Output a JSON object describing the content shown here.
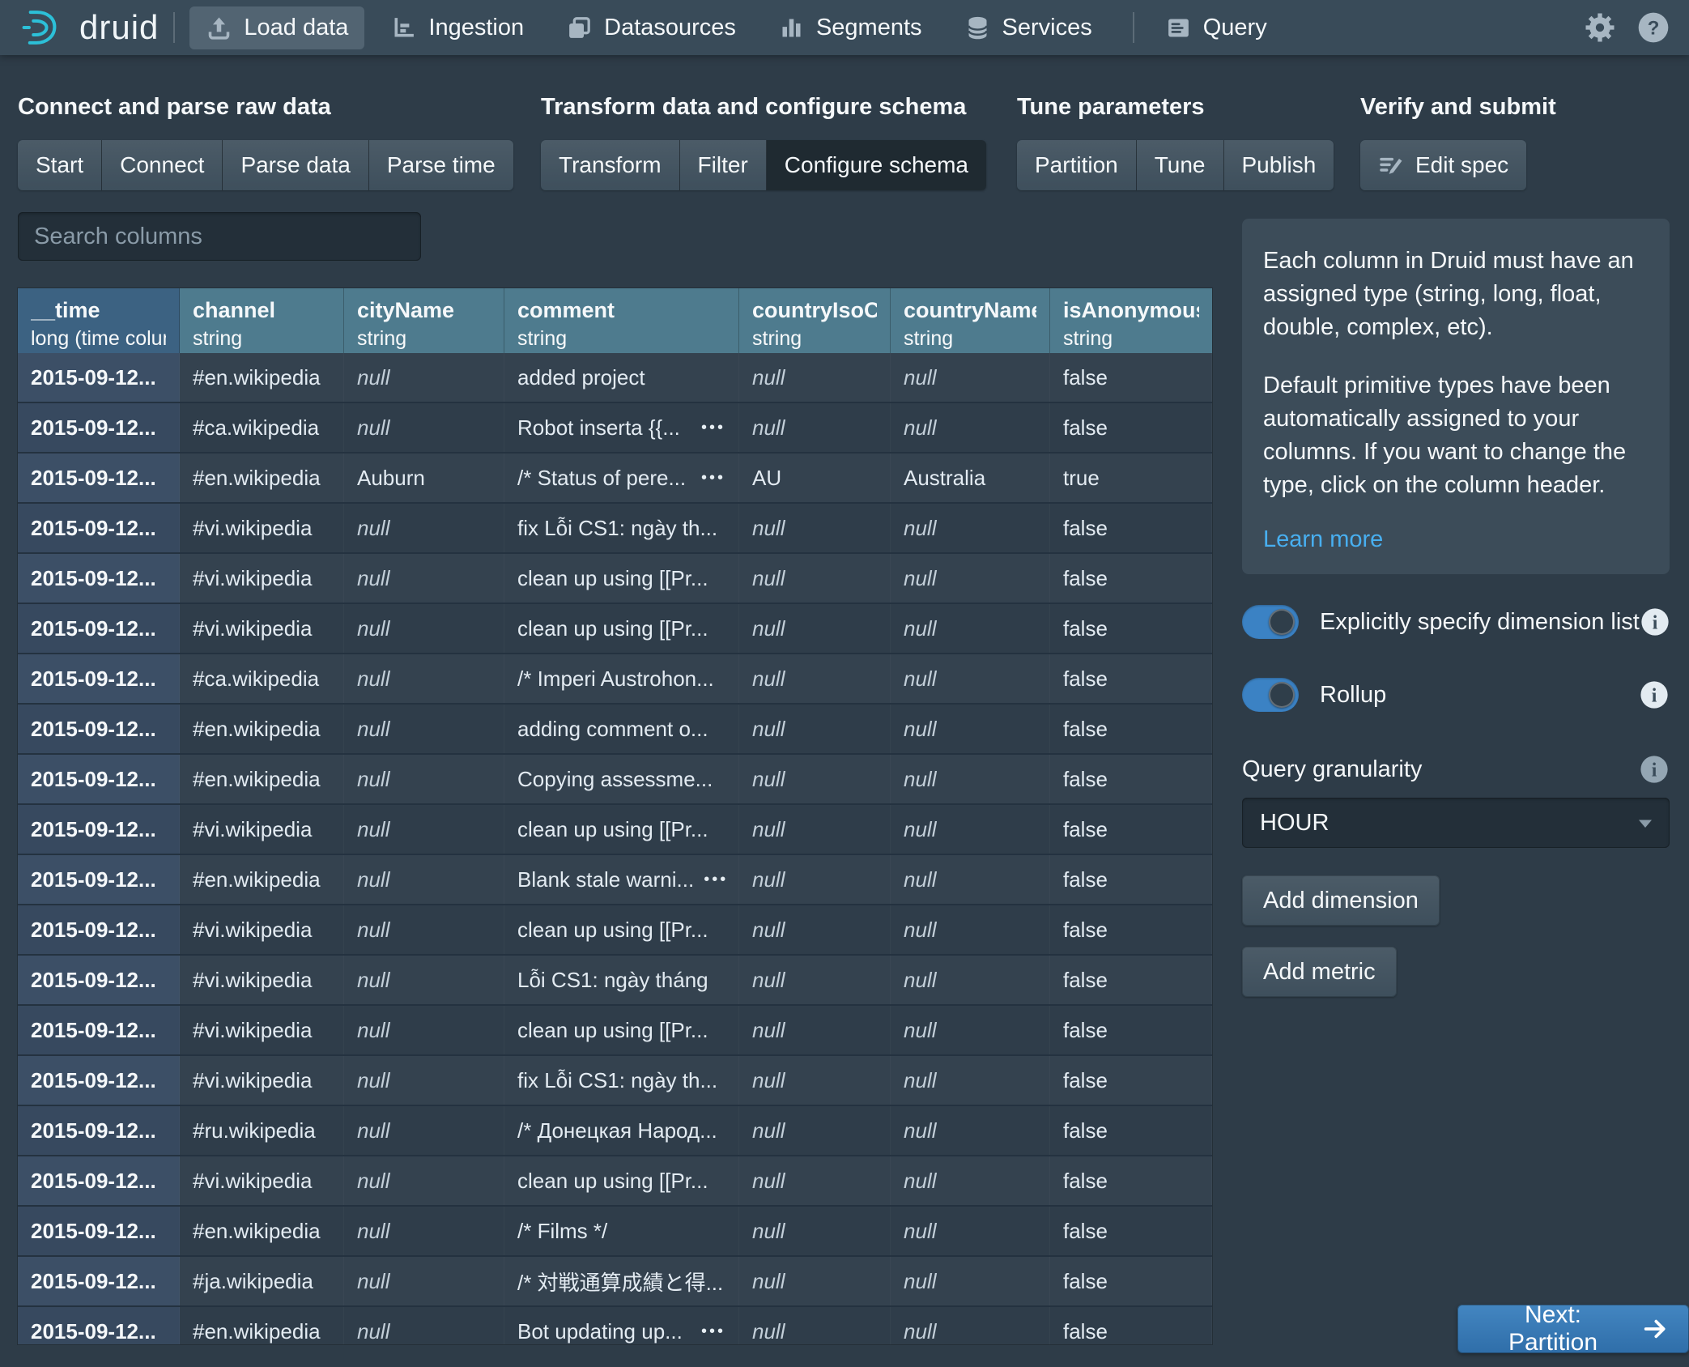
{
  "navbar": {
    "brand": "druid",
    "items": [
      {
        "label": "Load data",
        "icon": "upload",
        "active": true
      },
      {
        "label": "Ingestion",
        "icon": "ingestion"
      },
      {
        "label": "Datasources",
        "icon": "datasources"
      },
      {
        "label": "Segments",
        "icon": "segments"
      },
      {
        "label": "Services",
        "icon": "services"
      },
      {
        "label": "Query",
        "icon": "query",
        "divider_before": true
      }
    ]
  },
  "steps": {
    "groups": [
      {
        "title": "Connect and parse raw data",
        "buttons": [
          {
            "label": "Start"
          },
          {
            "label": "Connect"
          },
          {
            "label": "Parse data"
          },
          {
            "label": "Parse time"
          }
        ]
      },
      {
        "title": "Transform data and configure schema",
        "buttons": [
          {
            "label": "Transform"
          },
          {
            "label": "Filter"
          },
          {
            "label": "Configure schema",
            "active": true
          }
        ]
      },
      {
        "title": "Tune parameters",
        "buttons": [
          {
            "label": "Partition"
          },
          {
            "label": "Tune"
          },
          {
            "label": "Publish"
          }
        ]
      },
      {
        "title": "Verify and submit",
        "buttons": [
          {
            "label": "Edit spec",
            "icon": "edit-spec"
          }
        ]
      }
    ]
  },
  "search": {
    "placeholder": "Search columns"
  },
  "table": {
    "columns": [
      {
        "name": "__time",
        "type": "long (time column)",
        "time": true
      },
      {
        "name": "channel",
        "type": "string"
      },
      {
        "name": "cityName",
        "type": "string"
      },
      {
        "name": "comment",
        "type": "string"
      },
      {
        "name": "countryIsoCode",
        "type": "string"
      },
      {
        "name": "countryName",
        "type": "string"
      },
      {
        "name": "isAnonymous",
        "type": "string"
      }
    ],
    "rows": [
      {
        "cells": [
          "2015-09-12...",
          "#en.wikipedia",
          "null",
          "added project",
          "null",
          "null",
          "false"
        ],
        "more": false
      },
      {
        "cells": [
          "2015-09-12...",
          "#ca.wikipedia",
          "null",
          "Robot inserta {{...",
          "null",
          "null",
          "false"
        ],
        "more": true
      },
      {
        "cells": [
          "2015-09-12...",
          "#en.wikipedia",
          "Auburn",
          "/* Status of pere...",
          "AU",
          "Australia",
          "true"
        ],
        "more": true
      },
      {
        "cells": [
          "2015-09-12...",
          "#vi.wikipedia",
          "null",
          "fix Lỗi CS1: ngày th...",
          "null",
          "null",
          "false"
        ],
        "more": false
      },
      {
        "cells": [
          "2015-09-12...",
          "#vi.wikipedia",
          "null",
          "clean up using [[Pr...",
          "null",
          "null",
          "false"
        ],
        "more": false
      },
      {
        "cells": [
          "2015-09-12...",
          "#vi.wikipedia",
          "null",
          "clean up using [[Pr...",
          "null",
          "null",
          "false"
        ],
        "more": false
      },
      {
        "cells": [
          "2015-09-12...",
          "#ca.wikipedia",
          "null",
          "/* Imperi Austrohon...",
          "null",
          "null",
          "false"
        ],
        "more": false
      },
      {
        "cells": [
          "2015-09-12...",
          "#en.wikipedia",
          "null",
          "adding comment o...",
          "null",
          "null",
          "false"
        ],
        "more": false
      },
      {
        "cells": [
          "2015-09-12...",
          "#en.wikipedia",
          "null",
          "Copying assessme...",
          "null",
          "null",
          "false"
        ],
        "more": false
      },
      {
        "cells": [
          "2015-09-12...",
          "#vi.wikipedia",
          "null",
          "clean up using [[Pr...",
          "null",
          "null",
          "false"
        ],
        "more": false
      },
      {
        "cells": [
          "2015-09-12...",
          "#en.wikipedia",
          "null",
          "Blank stale warni...",
          "null",
          "null",
          "false"
        ],
        "more": true
      },
      {
        "cells": [
          "2015-09-12...",
          "#vi.wikipedia",
          "null",
          "clean up using [[Pr...",
          "null",
          "null",
          "false"
        ],
        "more": false
      },
      {
        "cells": [
          "2015-09-12...",
          "#vi.wikipedia",
          "null",
          "Lỗi CS1: ngày tháng",
          "null",
          "null",
          "false"
        ],
        "more": false
      },
      {
        "cells": [
          "2015-09-12...",
          "#vi.wikipedia",
          "null",
          "clean up using [[Pr...",
          "null",
          "null",
          "false"
        ],
        "more": false
      },
      {
        "cells": [
          "2015-09-12...",
          "#vi.wikipedia",
          "null",
          "fix Lỗi CS1: ngày th...",
          "null",
          "null",
          "false"
        ],
        "more": false
      },
      {
        "cells": [
          "2015-09-12...",
          "#ru.wikipedia",
          "null",
          "/* Донецкая Народ...",
          "null",
          "null",
          "false"
        ],
        "more": false
      },
      {
        "cells": [
          "2015-09-12...",
          "#vi.wikipedia",
          "null",
          "clean up using [[Pr...",
          "null",
          "null",
          "false"
        ],
        "more": false
      },
      {
        "cells": [
          "2015-09-12...",
          "#en.wikipedia",
          "null",
          "/* Films */",
          "null",
          "null",
          "false"
        ],
        "more": false
      },
      {
        "cells": [
          "2015-09-12...",
          "#ja.wikipedia",
          "null",
          "/* 対戦通算成績と得...",
          "null",
          "null",
          "false"
        ],
        "more": false
      },
      {
        "cells": [
          "2015-09-12...",
          "#en.wikipedia",
          "null",
          "Bot updating up...",
          "null",
          "null",
          "false"
        ],
        "more": true
      }
    ]
  },
  "panel": {
    "callout": {
      "paragraphs": [
        "Each column in Druid must have an assigned type (string, long, float, double, complex, etc).",
        "Default primitive types have been automatically assigned to your columns. If you want to change the type, click on the column header."
      ],
      "link": "Learn more"
    },
    "switches": [
      {
        "label": "Explicitly specify dimension list",
        "on": true
      },
      {
        "label": "Rollup",
        "on": true
      }
    ],
    "query_granularity": {
      "label": "Query granularity",
      "value": "HOUR"
    },
    "buttons": [
      {
        "label": "Add dimension"
      },
      {
        "label": "Add metric"
      }
    ]
  },
  "next_button": {
    "label": "Next: Partition"
  },
  "colors": {
    "accent": "#137cbd",
    "link": "#48aff0",
    "logo_cyan": "#2CC0D8",
    "header_teal": "#4e7b8e",
    "time_header_blue": "#3c6282",
    "navbar": "#394B59",
    "background": "#2e3c48"
  }
}
